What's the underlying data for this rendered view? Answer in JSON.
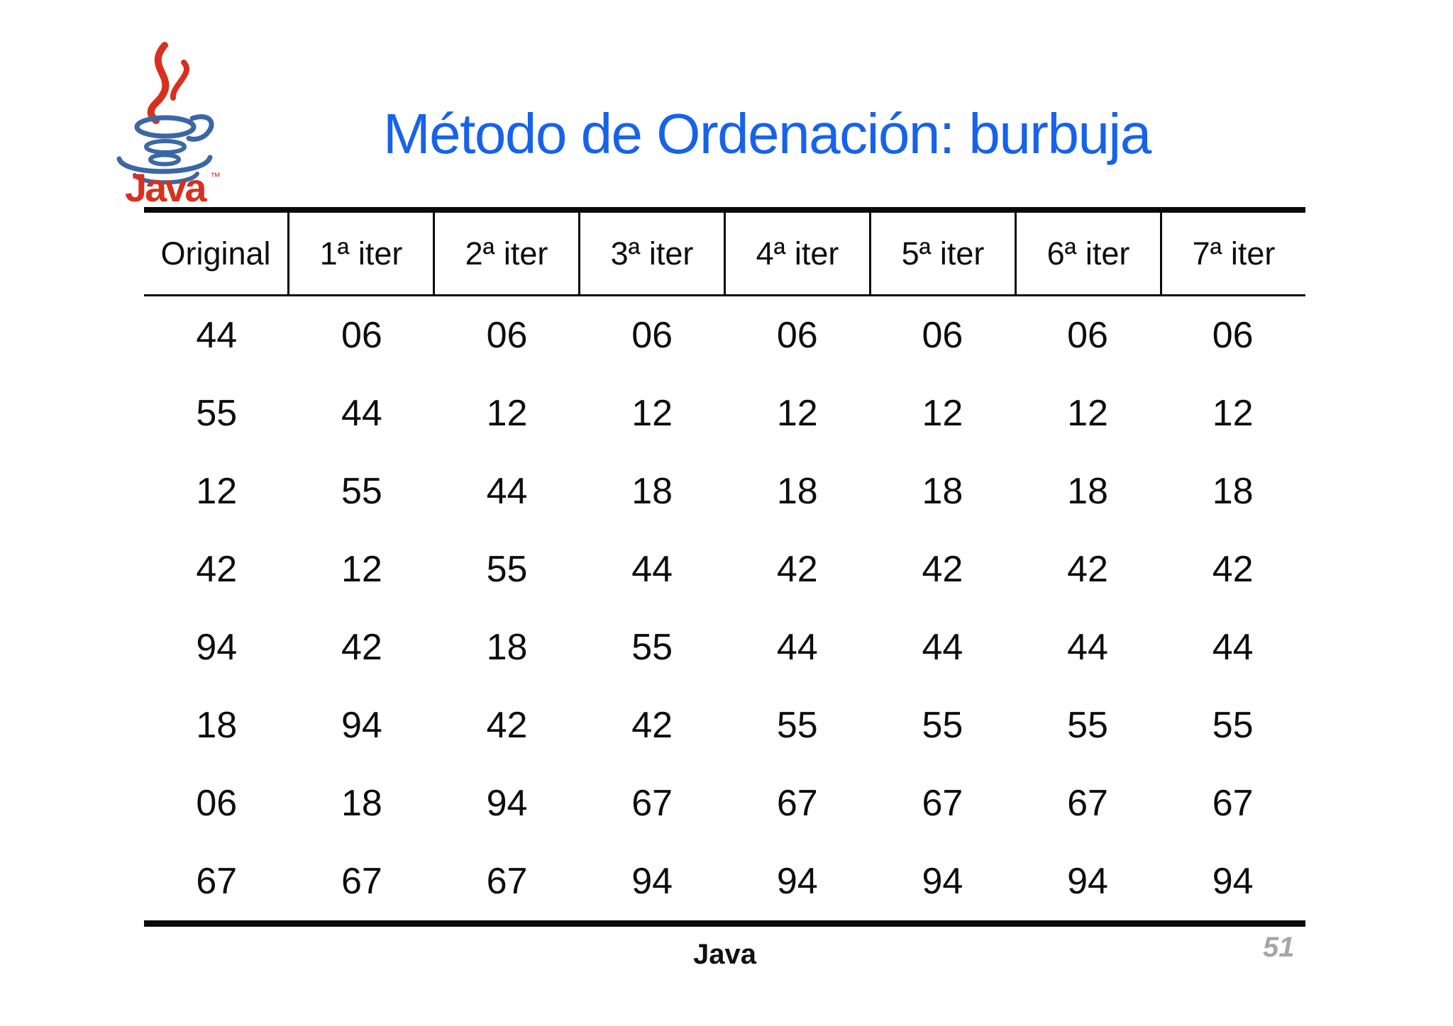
{
  "slide": {
    "title": "Método de Ordenación: burbuja",
    "footer_brand": "Java",
    "page_number": "51"
  },
  "logo": {
    "wordmark": "Java",
    "trademark": "™",
    "red": "#d8301f",
    "blue": "#3b67a5"
  },
  "colors": {
    "title_blue": "#1663ea",
    "text_black": "#0d0d0d",
    "line_black": "#0a0a0a",
    "page_number_gray": "#a6a6a6"
  },
  "chart_data": {
    "type": "table",
    "columns": [
      "Original",
      "1ª iter",
      "2ª iter",
      "3ª iter",
      "4ª iter",
      "5ª iter",
      "6ª iter",
      "7ª iter"
    ],
    "rows": [
      [
        "44",
        "06",
        "06",
        "06",
        "06",
        "06",
        "06",
        "06"
      ],
      [
        "55",
        "44",
        "12",
        "12",
        "12",
        "12",
        "12",
        "12"
      ],
      [
        "12",
        "55",
        "44",
        "18",
        "18",
        "18",
        "18",
        "18"
      ],
      [
        "42",
        "12",
        "55",
        "44",
        "42",
        "42",
        "42",
        "42"
      ],
      [
        "94",
        "42",
        "18",
        "55",
        "44",
        "44",
        "44",
        "44"
      ],
      [
        "18",
        "94",
        "42",
        "42",
        "55",
        "55",
        "55",
        "55"
      ],
      [
        "06",
        "18",
        "94",
        "67",
        "67",
        "67",
        "67",
        "67"
      ],
      [
        "67",
        "67",
        "67",
        "94",
        "94",
        "94",
        "94",
        "94"
      ]
    ]
  }
}
